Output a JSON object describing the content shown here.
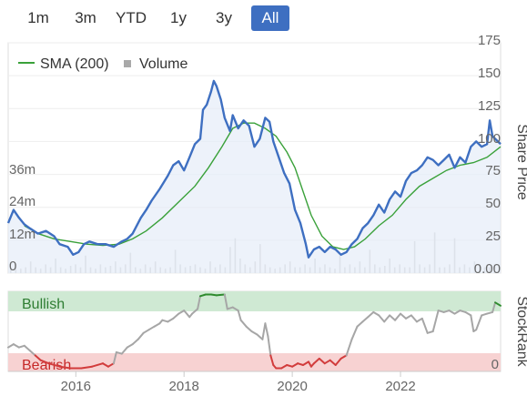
{
  "range_buttons": [
    {
      "label": "1m",
      "active": false
    },
    {
      "label": "3m",
      "active": false
    },
    {
      "label": "YTD",
      "active": false
    },
    {
      "label": "1y",
      "active": false
    },
    {
      "label": "3y",
      "active": false
    },
    {
      "label": "All",
      "active": true
    }
  ],
  "colors": {
    "price": "#3e6fc1",
    "sma": "#3aa13a",
    "volume": "#c8c8c8",
    "rank_neutral": "#a6a6a6",
    "rank_bull": "#2e8b2e",
    "rank_bear": "#d23c3c",
    "bull_band": "#cfe9d3",
    "bear_band": "#f7d2d2",
    "active_button": "#3e6fc1"
  },
  "chart_data": [
    {
      "type": "line",
      "legend": [
        "SMA (200)",
        "Volume"
      ],
      "legend_position": "top-left",
      "right_axis_title": "Share Price",
      "right_ticks": [
        "175",
        "150",
        "125",
        "100",
        "75",
        "50",
        "25",
        "0.00"
      ],
      "left_ticks": [
        "36m",
        "24m",
        "12m",
        "0"
      ],
      "ylim": [
        0,
        175
      ],
      "x_range": [
        2014.75,
        2023.85
      ],
      "series": [
        {
          "name": "price",
          "points": [
            [
              2014.75,
              38
            ],
            [
              2014.85,
              48
            ],
            [
              2014.95,
              42
            ],
            [
              2015.05,
              37
            ],
            [
              2015.15,
              34
            ],
            [
              2015.3,
              30
            ],
            [
              2015.45,
              32
            ],
            [
              2015.6,
              28
            ],
            [
              2015.7,
              22
            ],
            [
              2015.85,
              20
            ],
            [
              2015.95,
              14
            ],
            [
              2016.05,
              16
            ],
            [
              2016.15,
              22
            ],
            [
              2016.25,
              24
            ],
            [
              2016.4,
              22
            ],
            [
              2016.55,
              22
            ],
            [
              2016.7,
              20
            ],
            [
              2016.85,
              24
            ],
            [
              2016.95,
              26
            ],
            [
              2017.05,
              30
            ],
            [
              2017.2,
              42
            ],
            [
              2017.3,
              48
            ],
            [
              2017.4,
              55
            ],
            [
              2017.55,
              64
            ],
            [
              2017.7,
              74
            ],
            [
              2017.8,
              82
            ],
            [
              2017.9,
              85
            ],
            [
              2018.0,
              78
            ],
            [
              2018.1,
              88
            ],
            [
              2018.2,
              98
            ],
            [
              2018.3,
              102
            ],
            [
              2018.35,
              124
            ],
            [
              2018.42,
              128
            ],
            [
              2018.5,
              138
            ],
            [
              2018.55,
              146
            ],
            [
              2018.6,
              142
            ],
            [
              2018.68,
              132
            ],
            [
              2018.75,
              118
            ],
            [
              2018.85,
              108
            ],
            [
              2018.9,
              120
            ],
            [
              2019.0,
              110
            ],
            [
              2019.1,
              116
            ],
            [
              2019.2,
              112
            ],
            [
              2019.3,
              96
            ],
            [
              2019.4,
              102
            ],
            [
              2019.5,
              118
            ],
            [
              2019.58,
              115
            ],
            [
              2019.65,
              100
            ],
            [
              2019.75,
              88
            ],
            [
              2019.85,
              76
            ],
            [
              2019.95,
              68
            ],
            [
              2020.05,
              48
            ],
            [
              2020.15,
              38
            ],
            [
              2020.25,
              22
            ],
            [
              2020.3,
              12
            ],
            [
              2020.4,
              18
            ],
            [
              2020.5,
              20
            ],
            [
              2020.6,
              16
            ],
            [
              2020.7,
              20
            ],
            [
              2020.8,
              18
            ],
            [
              2020.9,
              14
            ],
            [
              2021.0,
              16
            ],
            [
              2021.1,
              22
            ],
            [
              2021.2,
              26
            ],
            [
              2021.3,
              34
            ],
            [
              2021.4,
              38
            ],
            [
              2021.5,
              44
            ],
            [
              2021.6,
              52
            ],
            [
              2021.7,
              46
            ],
            [
              2021.8,
              56
            ],
            [
              2021.9,
              62
            ],
            [
              2022.0,
              58
            ],
            [
              2022.1,
              70
            ],
            [
              2022.2,
              76
            ],
            [
              2022.3,
              78
            ],
            [
              2022.4,
              82
            ],
            [
              2022.5,
              88
            ],
            [
              2022.6,
              86
            ],
            [
              2022.7,
              82
            ],
            [
              2022.8,
              86
            ],
            [
              2022.9,
              90
            ],
            [
              2023.0,
              80
            ],
            [
              2023.1,
              88
            ],
            [
              2023.2,
              84
            ],
            [
              2023.3,
              96
            ],
            [
              2023.4,
              100
            ],
            [
              2023.5,
              96
            ],
            [
              2023.6,
              98
            ],
            [
              2023.65,
              116
            ],
            [
              2023.7,
              104
            ],
            [
              2023.8,
              100
            ],
            [
              2023.85,
              98
            ]
          ]
        },
        {
          "name": "SMA (200)",
          "points": [
            [
              2015.05,
              36
            ],
            [
              2015.3,
              30
            ],
            [
              2015.6,
              26
            ],
            [
              2015.9,
              24
            ],
            [
              2016.2,
              22
            ],
            [
              2016.5,
              21
            ],
            [
              2016.8,
              22
            ],
            [
              2017.05,
              26
            ],
            [
              2017.3,
              32
            ],
            [
              2017.6,
              42
            ],
            [
              2017.9,
              54
            ],
            [
              2018.2,
              66
            ],
            [
              2018.45,
              80
            ],
            [
              2018.7,
              96
            ],
            [
              2018.9,
              110
            ],
            [
              2019.1,
              114
            ],
            [
              2019.3,
              114
            ],
            [
              2019.5,
              110
            ],
            [
              2019.7,
              104
            ],
            [
              2019.9,
              92
            ],
            [
              2020.05,
              80
            ],
            [
              2020.2,
              62
            ],
            [
              2020.35,
              44
            ],
            [
              2020.55,
              28
            ],
            [
              2020.75,
              20
            ],
            [
              2020.95,
              18
            ],
            [
              2021.15,
              20
            ],
            [
              2021.35,
              26
            ],
            [
              2021.6,
              36
            ],
            [
              2021.85,
              44
            ],
            [
              2022.1,
              56
            ],
            [
              2022.35,
              66
            ],
            [
              2022.6,
              72
            ],
            [
              2022.85,
              78
            ],
            [
              2023.1,
              82
            ],
            [
              2023.35,
              84
            ],
            [
              2023.6,
              88
            ],
            [
              2023.85,
              96
            ]
          ]
        },
        {
          "name": "Volume",
          "values_m": [
            2,
            3,
            1.5,
            2,
            4,
            2,
            1.5,
            3,
            2,
            5,
            2,
            1.5,
            2.5,
            3,
            2,
            6,
            2,
            1.5,
            3,
            2,
            2.5,
            4,
            2,
            3,
            7,
            2,
            1.5,
            3,
            2,
            4,
            2,
            1.5,
            2,
            8,
            3,
            2,
            2.5,
            3,
            2,
            1.5,
            4,
            2,
            3,
            2,
            9,
            12,
            5,
            3,
            2,
            4,
            10,
            3,
            2,
            1.5,
            2,
            3,
            4,
            2,
            2,
            3,
            2,
            5,
            2,
            3,
            2,
            1.5,
            6,
            2,
            3,
            2,
            4,
            2,
            8,
            3,
            2,
            2.5,
            5,
            2,
            3,
            2,
            2,
            11,
            3,
            2,
            3,
            14,
            2,
            2,
            3,
            12,
            2,
            3,
            2,
            4,
            3,
            2,
            2,
            3
          ]
        }
      ]
    },
    {
      "type": "line",
      "right_axis_title": "StockRank",
      "right_ticks": [
        "0"
      ],
      "band_labels": {
        "bull": "Bullish",
        "bear": "Bearish"
      },
      "ylim": [
        0,
        100
      ],
      "bull_threshold": 80,
      "bear_threshold": 20,
      "x_ticks": [
        "2016",
        "2018",
        "2020",
        "2022"
      ],
      "x_tick_values": [
        2016,
        2018,
        2020,
        2022
      ],
      "series": [
        {
          "name": "StockRank",
          "points": [
            [
              2014.75,
              30
            ],
            [
              2014.85,
              34
            ],
            [
              2014.95,
              30
            ],
            [
              2015.05,
              32
            ],
            [
              2015.15,
              26
            ],
            [
              2015.25,
              20
            ],
            [
              2015.35,
              14
            ],
            [
              2015.5,
              10
            ],
            [
              2015.7,
              6
            ],
            [
              2015.9,
              4
            ],
            [
              2016.1,
              4
            ],
            [
              2016.3,
              6
            ],
            [
              2016.5,
              10
            ],
            [
              2016.6,
              6
            ],
            [
              2016.7,
              10
            ],
            [
              2016.75,
              24
            ],
            [
              2016.85,
              22
            ],
            [
              2016.95,
              30
            ],
            [
              2017.05,
              34
            ],
            [
              2017.15,
              40
            ],
            [
              2017.25,
              48
            ],
            [
              2017.35,
              52
            ],
            [
              2017.45,
              56
            ],
            [
              2017.55,
              60
            ],
            [
              2017.6,
              64
            ],
            [
              2017.7,
              62
            ],
            [
              2017.8,
              66
            ],
            [
              2017.9,
              72
            ],
            [
              2018.0,
              76
            ],
            [
              2018.1,
              68
            ],
            [
              2018.15,
              72
            ],
            [
              2018.25,
              78
            ],
            [
              2018.3,
              94
            ],
            [
              2018.4,
              96
            ],
            [
              2018.5,
              96
            ],
            [
              2018.6,
              95
            ],
            [
              2018.75,
              96
            ],
            [
              2018.8,
              78
            ],
            [
              2018.9,
              80
            ],
            [
              2019.0,
              76
            ],
            [
              2019.05,
              64
            ],
            [
              2019.15,
              56
            ],
            [
              2019.25,
              50
            ],
            [
              2019.35,
              46
            ],
            [
              2019.45,
              40
            ],
            [
              2019.5,
              60
            ],
            [
              2019.55,
              44
            ],
            [
              2019.6,
              20
            ],
            [
              2019.65,
              8
            ],
            [
              2019.7,
              4
            ],
            [
              2019.8,
              4
            ],
            [
              2019.9,
              8
            ],
            [
              2020.0,
              6
            ],
            [
              2020.1,
              10
            ],
            [
              2020.2,
              8
            ],
            [
              2020.3,
              12
            ],
            [
              2020.35,
              6
            ],
            [
              2020.4,
              10
            ],
            [
              2020.5,
              16
            ],
            [
              2020.6,
              10
            ],
            [
              2020.7,
              14
            ],
            [
              2020.8,
              8
            ],
            [
              2020.9,
              16
            ],
            [
              2021.0,
              20
            ],
            [
              2021.1,
              40
            ],
            [
              2021.2,
              56
            ],
            [
              2021.3,
              62
            ],
            [
              2021.4,
              68
            ],
            [
              2021.5,
              74
            ],
            [
              2021.6,
              70
            ],
            [
              2021.7,
              62
            ],
            [
              2021.8,
              70
            ],
            [
              2021.9,
              64
            ],
            [
              2022.0,
              72
            ],
            [
              2022.1,
              66
            ],
            [
              2022.2,
              70
            ],
            [
              2022.3,
              62
            ],
            [
              2022.4,
              66
            ],
            [
              2022.5,
              48
            ],
            [
              2022.6,
              50
            ],
            [
              2022.7,
              76
            ],
            [
              2022.8,
              74
            ],
            [
              2022.9,
              76
            ],
            [
              2023.0,
              72
            ],
            [
              2023.1,
              76
            ],
            [
              2023.2,
              74
            ],
            [
              2023.3,
              70
            ],
            [
              2023.35,
              50
            ],
            [
              2023.4,
              52
            ],
            [
              2023.5,
              70
            ],
            [
              2023.6,
              72
            ],
            [
              2023.7,
              74
            ],
            [
              2023.75,
              86
            ],
            [
              2023.85,
              82
            ]
          ]
        }
      ]
    }
  ]
}
